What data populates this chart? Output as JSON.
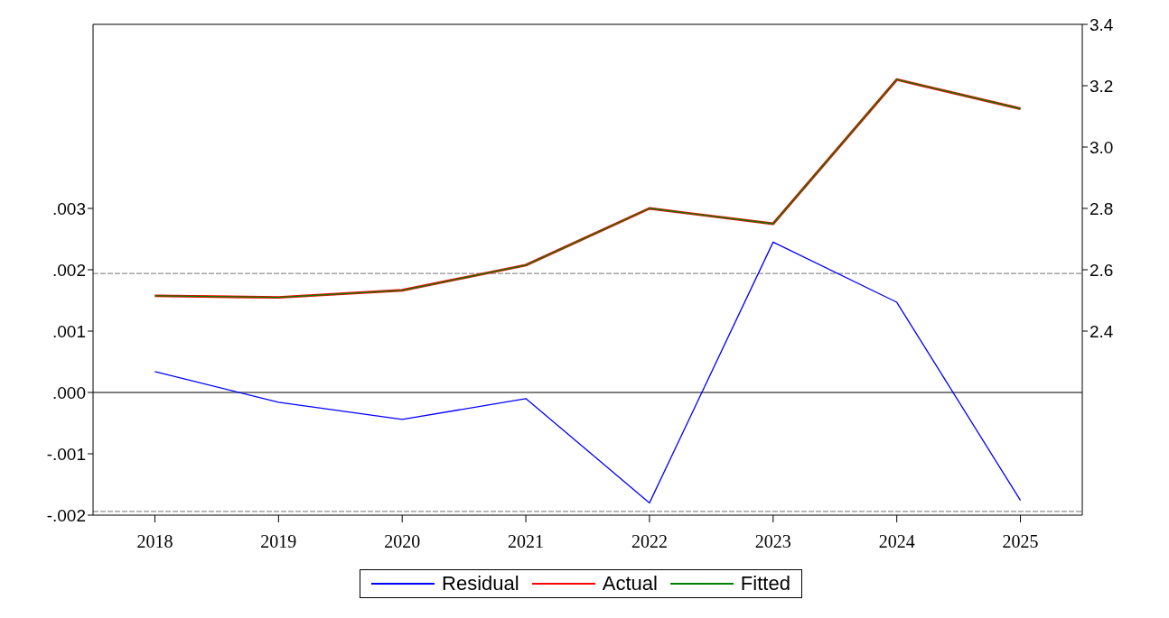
{
  "chart_data": {
    "type": "line",
    "categories": [
      "2018",
      "2019",
      "2020",
      "2021",
      "2022",
      "2023",
      "2024",
      "2025"
    ],
    "series": [
      {
        "name": "Residual",
        "color": "#0000ff",
        "axis": "y",
        "values": [
          0.00034,
          -0.00016,
          -0.00044,
          -0.0001,
          -0.0018,
          0.00245,
          0.00147,
          -0.00176
        ]
      },
      {
        "name": "Actual",
        "color": "#ff0000",
        "axis": "y2",
        "values": [
          2.515,
          2.51,
          2.533,
          2.615,
          2.8,
          2.75,
          3.22,
          3.125
        ]
      },
      {
        "name": "Fitted",
        "color": "#008000",
        "axis": "y2",
        "values": [
          2.515,
          2.51,
          2.533,
          2.615,
          2.8,
          2.75,
          3.22,
          3.125
        ]
      }
    ],
    "ylim": [
      -0.002,
      0.006
    ],
    "yticks": [
      {
        "value": -0.002,
        "label": "-.002"
      },
      {
        "value": -0.001,
        "label": "-.001"
      },
      {
        "value": 0,
        "label": ".000"
      },
      {
        "value": 0.001,
        "label": ".001"
      },
      {
        "value": 0.002,
        "label": ".002"
      },
      {
        "value": 0.003,
        "label": ".003"
      }
    ],
    "y2lim": [
      1.8,
      3.4
    ],
    "y2ticks": [
      {
        "value": 2.4,
        "label": "2.4"
      },
      {
        "value": 2.6,
        "label": "2.6"
      },
      {
        "value": 2.8,
        "label": "2.8"
      },
      {
        "value": 3.0,
        "label": "3.0"
      },
      {
        "value": 3.2,
        "label": "3.2"
      },
      {
        "value": 3.4,
        "label": "3.4"
      }
    ],
    "ref_lines": [
      {
        "axis": "y",
        "value": 0,
        "color": "#000000",
        "line_style": "solid"
      },
      {
        "axis": "y",
        "value": 0.00194,
        "color": "#909090",
        "line_style": "dashed"
      },
      {
        "axis": "y",
        "value": -0.00194,
        "color": "#909090",
        "line_style": "dashed"
      }
    ],
    "grid": false,
    "legend": "bottom",
    "marker": "none",
    "line_style": "solid"
  }
}
